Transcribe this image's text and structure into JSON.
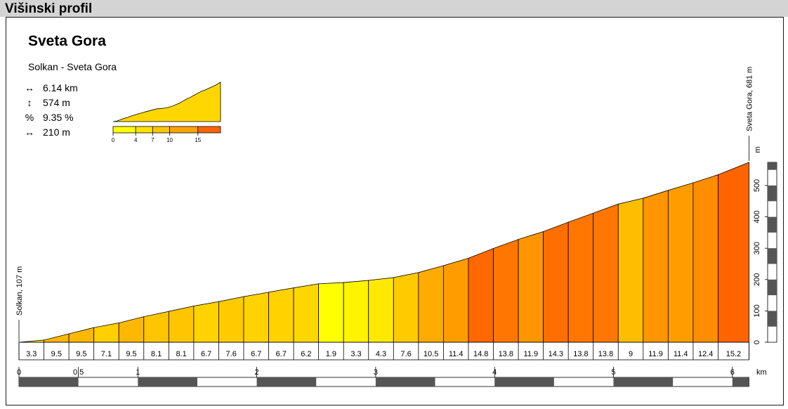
{
  "header": {
    "title": "Višinski profil"
  },
  "chart_data": {
    "type": "area",
    "title": "Sveta Gora",
    "subtitle": "Solkan - Sveta Gora",
    "stats": [
      {
        "icon": "horizontal-double-arrow-icon",
        "symbol": "↔",
        "text": "6.14 km"
      },
      {
        "icon": "vertical-double-arrow-icon",
        "symbol": "↕",
        "text": "574 m"
      },
      {
        "icon": "percent-icon",
        "symbol": "%",
        "text": "9.35 %"
      },
      {
        "icon": "segment-length-icon",
        "symbol": "↔",
        "text": "210 m"
      }
    ],
    "gradient_legend": {
      "ticks": [
        "0",
        "4",
        "7",
        "10",
        "15"
      ]
    },
    "start_label": "Solkan, 107 m",
    "end_label": "Sveta Gora, 681 m",
    "xlabel": "km",
    "ylabel": "m",
    "x_ticks": [
      "0",
      "0.5",
      "1",
      "2",
      "3",
      "4",
      "5",
      "6"
    ],
    "y_ticks": [
      "0",
      "100",
      "200",
      "300",
      "400",
      "500"
    ],
    "xlim": [
      0,
      6.14
    ],
    "ylim": [
      0,
      574
    ],
    "segment_length_km": 0.21,
    "gradients": [
      3.3,
      9.5,
      9.5,
      7.1,
      9.5,
      8.1,
      8.1,
      6.7,
      7.6,
      6.7,
      6.7,
      6.2,
      1.9,
      3.3,
      4.3,
      7.6,
      10.5,
      11.4,
      14.8,
      13.8,
      11.9,
      14.3,
      13.8,
      13.8,
      9,
      11.9,
      11.4,
      12.4,
      15.2
    ],
    "gradient_labels": [
      "3.3",
      "9.5",
      "9.5",
      "7.1",
      "9.5",
      "8.1",
      "8.1",
      "6.7",
      "7.6",
      "6.7",
      "6.7",
      "6.2",
      "1.9",
      "3.3",
      "4.3",
      "7.6",
      "10.5",
      "11.4",
      "14.8",
      "13.8",
      "11.9",
      "14.3",
      "13.8",
      "13.8",
      "9",
      "11.9",
      "11.4",
      "12.4",
      "15.2"
    ],
    "colors": {
      "low": "#ffff00",
      "mid": "#ffb300",
      "high": "#ff6400",
      "bar_dark": "#555555",
      "bar_light": "#ffffff"
    }
  }
}
